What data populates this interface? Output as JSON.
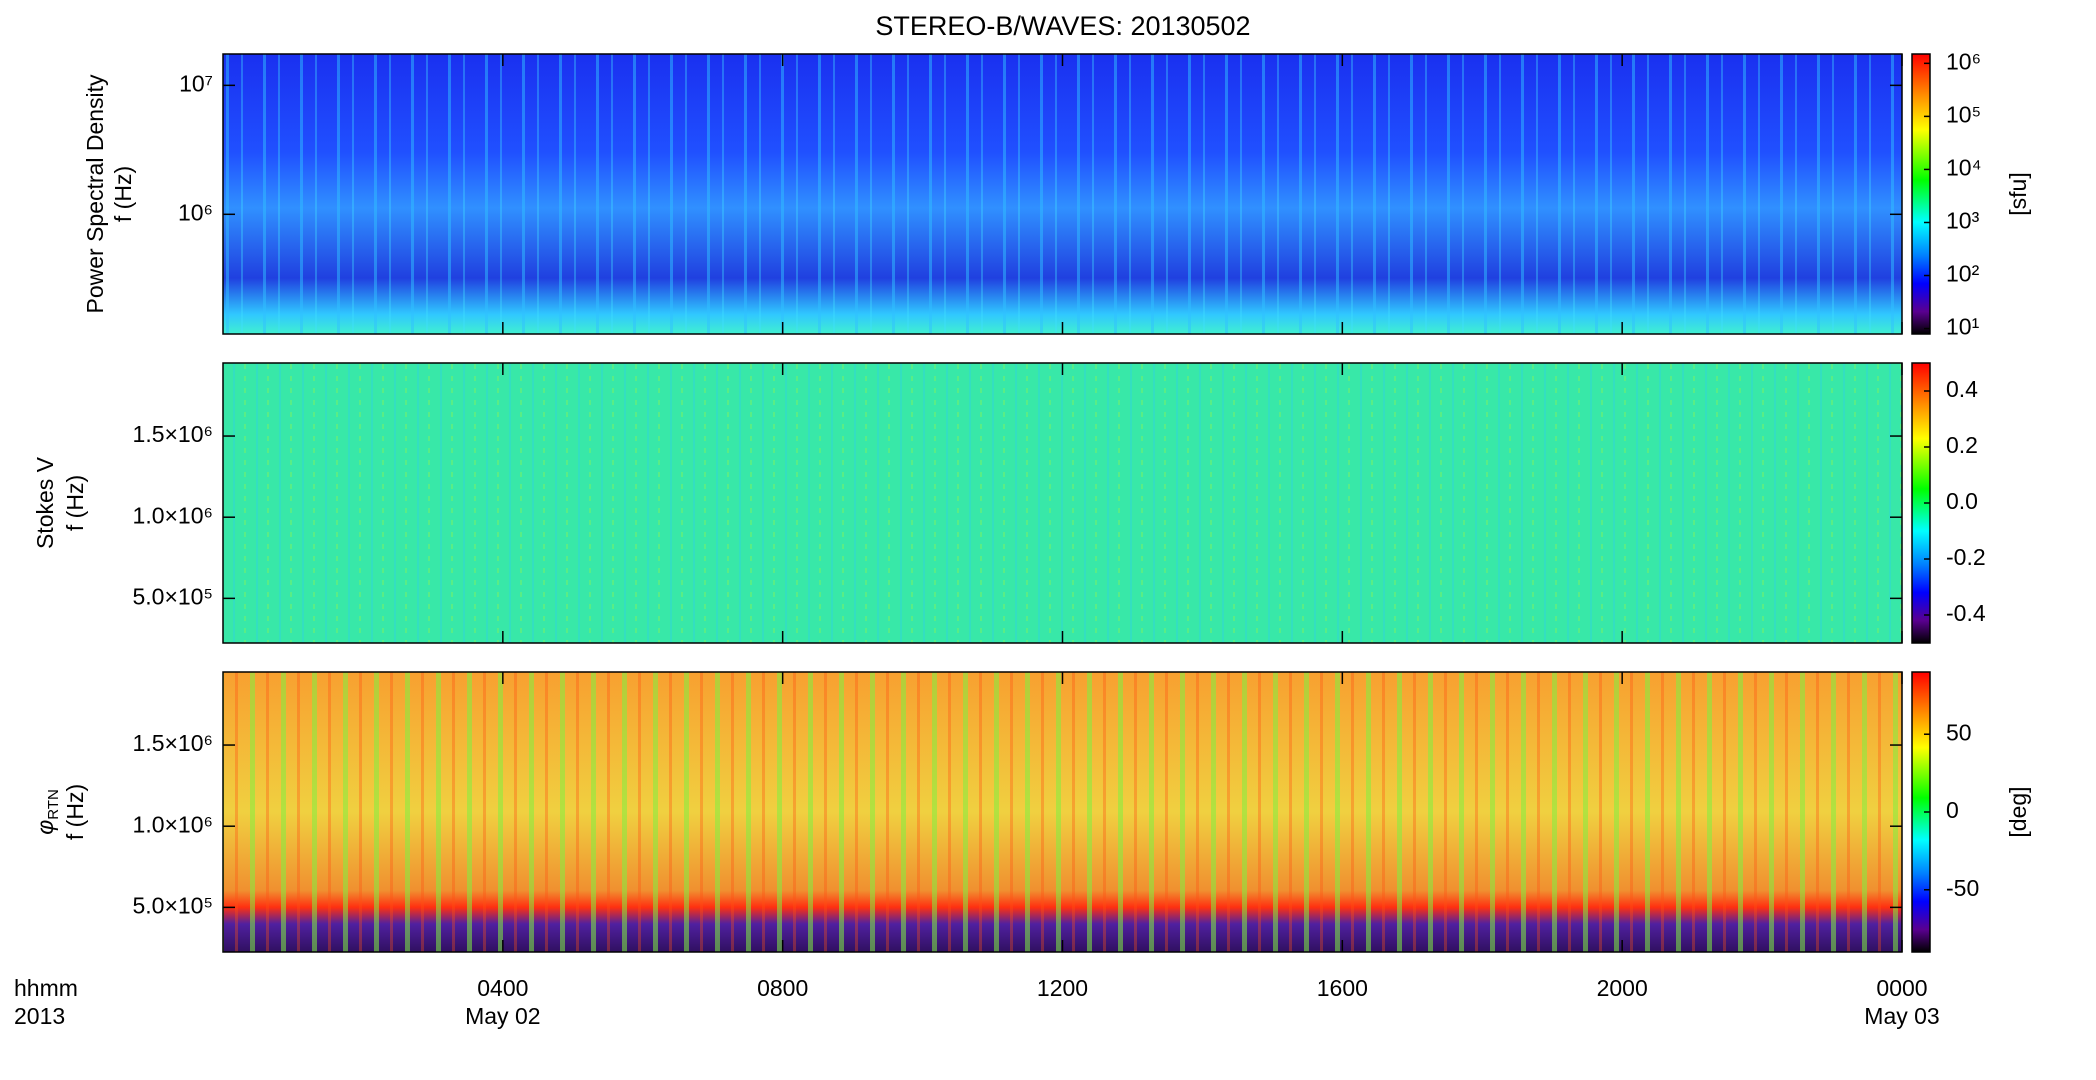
{
  "chart_data": [
    {
      "type": "heatmap",
      "title": "STEREO-B/WAVES: 20130502",
      "ylabel": "Power Spectral Density",
      "ylabel_unit": "f (Hz)",
      "ylog": true,
      "ylim": [
        118000,
        17500000
      ],
      "yticks": [
        {
          "value": 1000000,
          "label": "10⁶"
        },
        {
          "value": 10000000,
          "label": "10⁷"
        }
      ],
      "colorbar": {
        "log": true,
        "lim": [
          7.9,
          1500000
        ],
        "label": "[sfu]",
        "ticks": [
          {
            "value": 10,
            "label": "10¹"
          },
          {
            "value": 100,
            "label": "10²"
          },
          {
            "value": 1000,
            "label": "10³"
          },
          {
            "value": 10000,
            "label": "10⁴"
          },
          {
            "value": 100000,
            "label": "10⁵"
          },
          {
            "value": 1000000,
            "label": "10⁶"
          }
        ]
      }
    },
    {
      "type": "heatmap",
      "ylabel": "Stokes V",
      "ylabel_unit": "f (Hz)",
      "ylim": [
        225000,
        1950000
      ],
      "yticks": [
        {
          "value": 500000,
          "label": "5.0×10⁵"
        },
        {
          "value": 1000000,
          "label": "1.0×10⁶"
        },
        {
          "value": 1500000,
          "label": "1.5×10⁶"
        }
      ],
      "colorbar": {
        "lim": [
          -0.5,
          0.5
        ],
        "ticks": [
          -0.4,
          -0.2,
          {
            "value": 0,
            "label": "0.0"
          },
          0.2,
          0.4
        ]
      }
    },
    {
      "type": "heatmap",
      "ylabel_symbol": "φ",
      "ylabel_subscript": "RTN",
      "ylabel_unit": "f (Hz)",
      "ylim": [
        225000,
        1950000
      ],
      "yticks": [
        {
          "value": 500000,
          "label": "5.0×10⁵"
        },
        {
          "value": 1000000,
          "label": "1.0×10⁶"
        },
        {
          "value": 1500000,
          "label": "1.5×10⁶"
        }
      ],
      "colorbar": {
        "lim": [
          -90,
          90
        ],
        "label": "[deg]",
        "ticks": [
          -50,
          0,
          50
        ]
      },
      "xlabel": [
        "hhmm",
        "2013"
      ],
      "xlim": [
        0,
        24
      ],
      "xticks": [
        {
          "value": 4,
          "label": "0400"
        },
        {
          "value": 8,
          "label": "0800"
        },
        {
          "value": 12,
          "label": "1200"
        },
        {
          "value": 16,
          "label": "1600"
        },
        {
          "value": 20,
          "label": "2000"
        },
        {
          "value": 24,
          "label": "0000"
        }
      ],
      "date_labels": [
        {
          "value": 4,
          "label": "May 02"
        },
        {
          "value": 24,
          "label": "May 03"
        }
      ]
    }
  ]
}
